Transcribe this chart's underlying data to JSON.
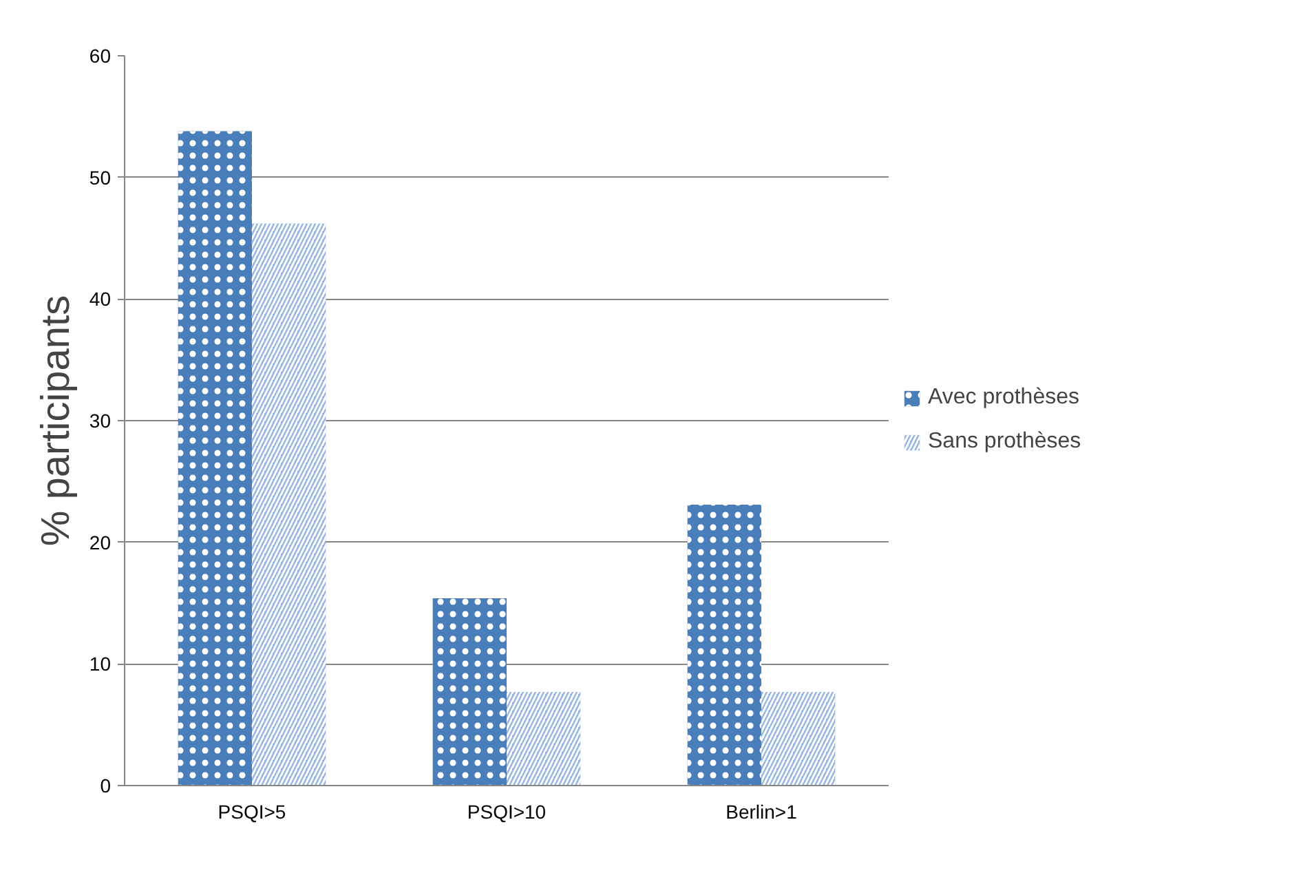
{
  "chart_data": {
    "type": "bar",
    "ylabel": "% participants",
    "categories": [
      "PSQI>5",
      "PSQI>10",
      "Berlin>1"
    ],
    "series": [
      {
        "name": "Avec prothèses",
        "color": "#4a7ebb",
        "values": [
          53.8,
          15.4,
          23.1
        ]
      },
      {
        "name": "Sans prothèses",
        "color": "#95b3e0",
        "values": [
          46.2,
          7.7,
          7.7
        ]
      }
    ],
    "ylim": [
      0,
      60
    ],
    "yticks": [
      0,
      10,
      20,
      30,
      40,
      50,
      60
    ],
    "grid": "y",
    "legend": "right"
  }
}
